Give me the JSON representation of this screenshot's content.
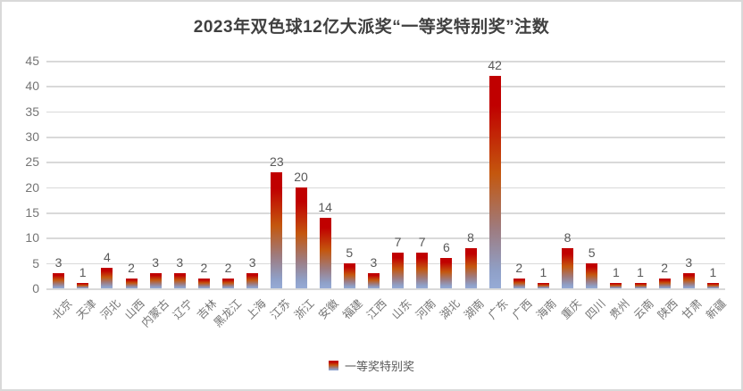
{
  "title": "2023年双色球12亿大派奖“一等奖特别奖”注数",
  "legend": {
    "label": "一等奖特别奖"
  },
  "colors": {
    "border": "#d9d9d9",
    "gridline": "#d9d9d9",
    "title_text": "#404040",
    "axis_text": "#757575",
    "value_label_text": "#595959",
    "bar_gradient_stops": [
      [
        "#C00000",
        "0%"
      ],
      [
        "#C00000",
        "14%"
      ],
      [
        "#C4570E",
        "46%"
      ],
      [
        "#9E7B7F",
        "72%"
      ],
      [
        "#8FA0C8",
        "92%"
      ],
      [
        "#96ABD6",
        "100%"
      ]
    ]
  },
  "chart_data": {
    "type": "bar",
    "title": "2023年双色球12亿大派奖“一等奖特别奖”注数",
    "series_name": "一等奖特别奖",
    "categories": [
      "北京",
      "天津",
      "河北",
      "山西",
      "内蒙古",
      "辽宁",
      "吉林",
      "黑龙江",
      "上海",
      "江苏",
      "浙江",
      "安徽",
      "福建",
      "江西",
      "山东",
      "河南",
      "湖北",
      "湖南",
      "广东",
      "广西",
      "海南",
      "重庆",
      "四川",
      "贵州",
      "云南",
      "陕西",
      "甘肃",
      "新疆"
    ],
    "values": [
      3,
      1,
      4,
      2,
      3,
      3,
      2,
      2,
      3,
      23,
      20,
      14,
      5,
      3,
      7,
      7,
      6,
      8,
      42,
      2,
      1,
      8,
      5,
      1,
      1,
      2,
      3,
      1
    ],
    "xlabel": "",
    "ylabel": "",
    "ylim": [
      0,
      45
    ],
    "yticks": [
      0,
      5,
      10,
      15,
      20,
      25,
      30,
      35,
      40,
      45
    ],
    "grid": "horizontal",
    "legend_position": "bottom",
    "x_tick_rotation_deg": 45,
    "data_labels": true
  }
}
